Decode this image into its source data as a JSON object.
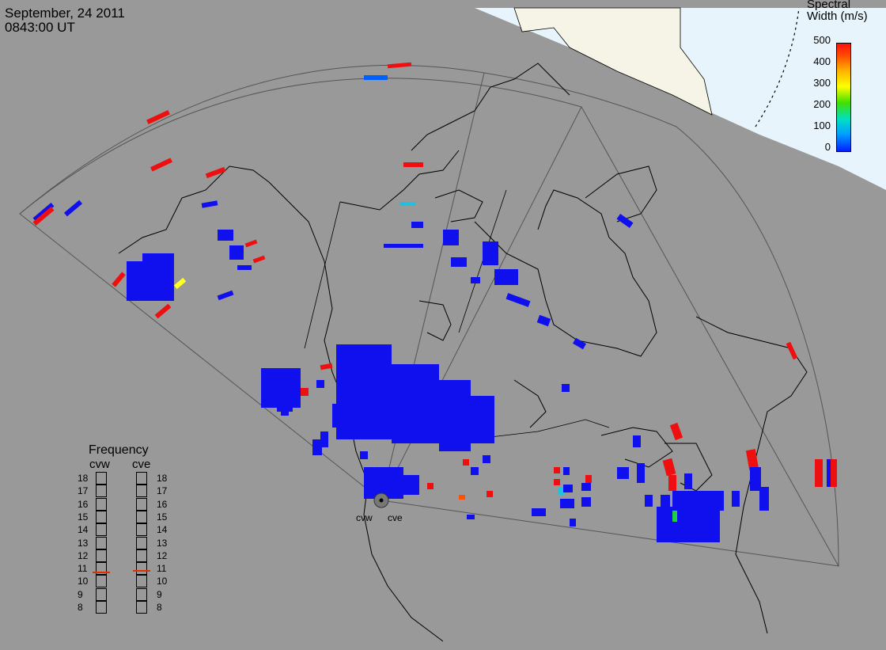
{
  "header": {
    "date": "September, 24 2011",
    "time": "0843:00 UT"
  },
  "colorbar": {
    "title_line1": "Spectral",
    "title_line2": "Width (m/s)",
    "ticks": [
      "500",
      "400",
      "300",
      "200",
      "100",
      "0"
    ],
    "min": 0,
    "max": 500,
    "colors": [
      "#0020ff",
      "#00a0ff",
      "#00e0c0",
      "#40e000",
      "#ffff00",
      "#ffb000",
      "#ff5000",
      "#ff1010"
    ]
  },
  "frequency": {
    "title": "Frequency",
    "radars": [
      "cvw",
      "cve"
    ],
    "scale": [
      "18",
      "17",
      "16",
      "15",
      "14",
      "13",
      "12",
      "11",
      "10",
      "9",
      "8"
    ],
    "values_mhz": {
      "cvw": 10.8,
      "cve": 10.9
    }
  },
  "sites": [
    "cvw",
    "cve"
  ],
  "colors": {
    "background": "#999999",
    "daylight": "#e8f4fb",
    "land_daylight": "#f5f4e6",
    "low_width": "#1010ee",
    "high_width": "#ee1010"
  }
}
